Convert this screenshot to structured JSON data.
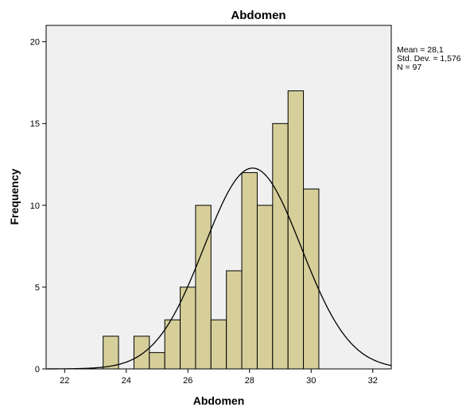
{
  "chart_data": {
    "type": "bar",
    "title": "Abdomen",
    "xlabel": "Abdomen",
    "ylabel": "Frequency",
    "xlim": [
      21.4,
      32.6
    ],
    "ylim": [
      0,
      21
    ],
    "x_ticks": [
      "22",
      "24",
      "26",
      "28",
      "30",
      "32"
    ],
    "x_tick_values": [
      22,
      24,
      26,
      28,
      30,
      32
    ],
    "y_ticks": [
      "0",
      "5",
      "10",
      "15",
      "20"
    ],
    "y_tick_values": [
      0,
      5,
      10,
      15,
      20
    ],
    "bin_width": 0.5,
    "bins": [
      {
        "start": 23.25,
        "count": 2
      },
      {
        "start": 23.75,
        "count": 0
      },
      {
        "start": 24.25,
        "count": 2
      },
      {
        "start": 24.75,
        "count": 1
      },
      {
        "start": 25.25,
        "count": 3
      },
      {
        "start": 25.75,
        "count": 5
      },
      {
        "start": 26.25,
        "count": 10
      },
      {
        "start": 26.75,
        "count": 3
      },
      {
        "start": 27.25,
        "count": 6
      },
      {
        "start": 27.75,
        "count": 12
      },
      {
        "start": 28.25,
        "count": 10
      },
      {
        "start": 28.75,
        "count": 15
      },
      {
        "start": 29.25,
        "count": 17
      },
      {
        "start": 29.75,
        "count": 11
      }
    ],
    "normal_curve": {
      "mean": 28.1,
      "sd": 1.576,
      "n": 97
    },
    "stats_lines": [
      "Mean = 28,1",
      "Std. Dev. = 1,576",
      "N = 97"
    ],
    "grid": false,
    "colors": {
      "bar_fill": "#d6cf9a",
      "plot_background": "#f0f0f0",
      "bar_stroke": "#000000",
      "curve": "#000000"
    }
  }
}
